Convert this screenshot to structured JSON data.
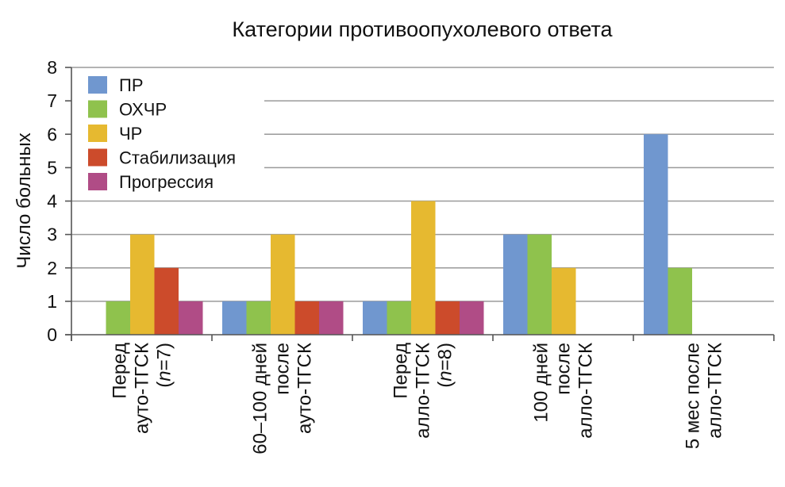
{
  "chart_data": {
    "type": "bar",
    "title": "Категории противоопухолевого ответа",
    "ylabel": "Число больных",
    "xlabel": "",
    "ylim": [
      0,
      8
    ],
    "yticks": [
      0,
      1,
      2,
      3,
      4,
      5,
      6,
      7,
      8
    ],
    "grid": true,
    "legend_position": "top-left",
    "categories": [
      {
        "lines": [
          {
            "parts": [
              {
                "text": "Перед",
                "italic": false
              }
            ]
          },
          {
            "parts": [
              {
                "text": "ауто-ТГСК",
                "italic": false
              }
            ]
          },
          {
            "parts": [
              {
                "text": "(",
                "italic": false
              },
              {
                "text": "n",
                "italic": true
              },
              {
                "text": "=7)",
                "italic": false
              }
            ]
          }
        ]
      },
      {
        "lines": [
          {
            "parts": [
              {
                "text": "60–100 дней",
                "italic": false
              }
            ]
          },
          {
            "parts": [
              {
                "text": "после",
                "italic": false
              }
            ]
          },
          {
            "parts": [
              {
                "text": "ауто-ТГСК",
                "italic": false
              }
            ]
          }
        ]
      },
      {
        "lines": [
          {
            "parts": [
              {
                "text": "Перед",
                "italic": false
              }
            ]
          },
          {
            "parts": [
              {
                "text": "алло-ТГСК",
                "italic": false
              }
            ]
          },
          {
            "parts": [
              {
                "text": "(",
                "italic": false
              },
              {
                "text": "n",
                "italic": true
              },
              {
                "text": "=8)",
                "italic": false
              }
            ]
          }
        ]
      },
      {
        "lines": [
          {
            "parts": [
              {
                "text": "100 дней",
                "italic": false
              }
            ]
          },
          {
            "parts": [
              {
                "text": "после",
                "italic": false
              }
            ]
          },
          {
            "parts": [
              {
                "text": "алло-ТГСК",
                "italic": false
              }
            ]
          }
        ]
      },
      {
        "lines": [
          {
            "parts": [
              {
                "text": "5 мес после",
                "italic": false
              }
            ]
          },
          {
            "parts": [
              {
                "text": "алло-ТГСК",
                "italic": false
              }
            ]
          }
        ]
      }
    ],
    "series": [
      {
        "name": "ПР",
        "color": "#7097cf",
        "values": [
          0,
          1,
          1,
          3,
          6
        ]
      },
      {
        "name": "ОХЧР",
        "color": "#8fc24d",
        "values": [
          1,
          1,
          1,
          3,
          2
        ]
      },
      {
        "name": "ЧР",
        "color": "#e6b930",
        "values": [
          3,
          3,
          4,
          2,
          0
        ]
      },
      {
        "name": "Стабилизация",
        "color": "#cc4b2b",
        "values": [
          2,
          1,
          1,
          0,
          0
        ]
      },
      {
        "name": "Прогрессия",
        "color": "#b04c86",
        "values": [
          1,
          1,
          1,
          0,
          0
        ]
      }
    ]
  }
}
